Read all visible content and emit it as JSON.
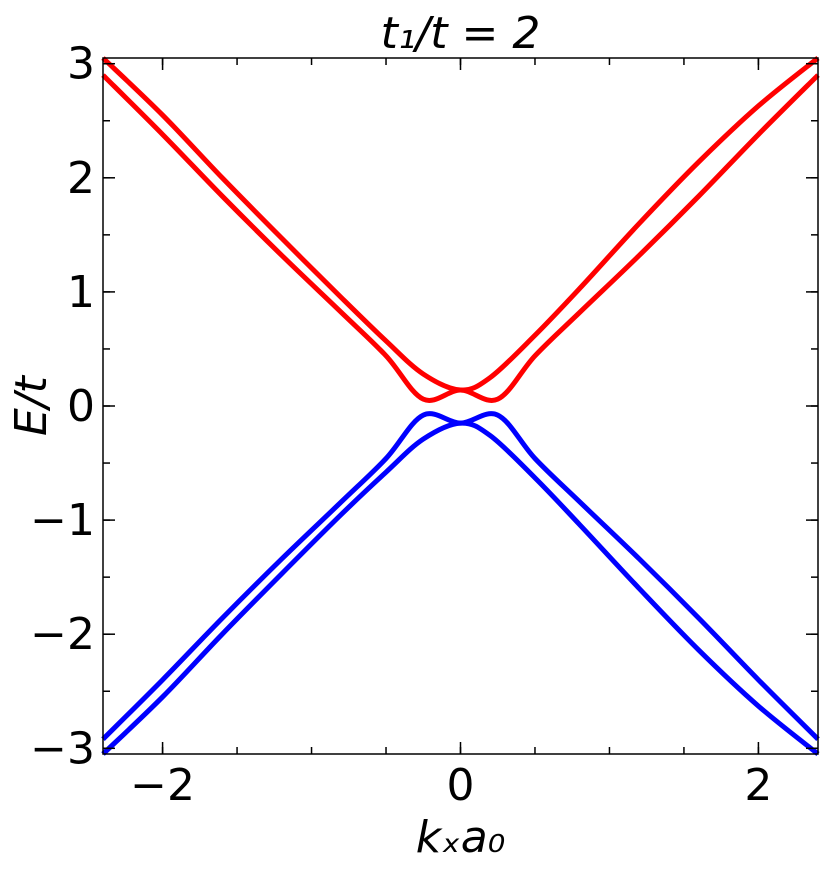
{
  "chart_data": {
    "type": "line",
    "title": "t₁/t = 2",
    "xlabel": "kₓa₀",
    "ylabel": "E/t",
    "xlim": [
      -2.4,
      2.4
    ],
    "ylim": [
      -3.05,
      3.05
    ],
    "x_ticks": [
      -2,
      0,
      2
    ],
    "x_tick_labels": [
      "−2",
      "0",
      "2"
    ],
    "y_ticks": [
      -3,
      -2,
      -1,
      0,
      1,
      2,
      3
    ],
    "y_tick_labels": [
      "−3",
      "−2",
      "−1",
      "0",
      "1",
      "2",
      "3"
    ],
    "x_minor_step": 0.5,
    "y_minor_step": 0.5,
    "tick_direction": "in",
    "grid": false,
    "legend": "none",
    "colors": {
      "conduction": "#ff0000",
      "valence": "#0000ff"
    },
    "series": [
      {
        "color": "#ff0000",
        "x": [
          -2.4,
          -2.0,
          -1.6,
          -1.2,
          -0.8,
          -0.5,
          -0.25,
          0.0,
          0.2,
          0.5,
          0.8,
          1.2,
          1.6,
          2.0,
          2.4
        ],
        "y": [
          3.05,
          2.55,
          2.0,
          1.47,
          0.95,
          0.57,
          0.28,
          0.14,
          0.25,
          0.62,
          1.03,
          1.6,
          2.14,
          2.63,
          3.05
        ]
      },
      {
        "color": "#ff0000",
        "x": [
          -2.4,
          -2.0,
          -1.6,
          -1.2,
          -0.8,
          -0.5,
          -0.25,
          0.0,
          0.25,
          0.5,
          0.8,
          1.2,
          1.6,
          2.0,
          2.4
        ],
        "y": [
          2.9,
          2.38,
          1.84,
          1.32,
          0.82,
          0.44,
          0.06,
          0.14,
          0.06,
          0.44,
          0.82,
          1.32,
          1.84,
          2.38,
          2.9
        ]
      },
      {
        "color": "#0000ff",
        "x": [
          -2.4,
          -2.0,
          -1.6,
          -1.2,
          -0.8,
          -0.5,
          -0.25,
          0.0,
          0.25,
          0.5,
          0.8,
          1.2,
          1.6,
          2.0,
          2.4
        ],
        "y": [
          -2.92,
          -2.4,
          -1.86,
          -1.34,
          -0.84,
          -0.46,
          -0.08,
          -0.15,
          -0.08,
          -0.46,
          -0.84,
          -1.34,
          -1.86,
          -2.4,
          -2.92
        ]
      },
      {
        "color": "#0000ff",
        "x": [
          -2.4,
          -2.0,
          -1.6,
          -1.2,
          -0.8,
          -0.5,
          -0.25,
          0.0,
          0.2,
          0.5,
          0.8,
          1.2,
          1.6,
          2.0,
          2.4
        ],
        "y": [
          -3.05,
          -2.55,
          -2.0,
          -1.47,
          -0.95,
          -0.58,
          -0.29,
          -0.15,
          -0.26,
          -0.63,
          -1.04,
          -1.6,
          -2.14,
          -2.63,
          -3.05
        ]
      }
    ]
  }
}
